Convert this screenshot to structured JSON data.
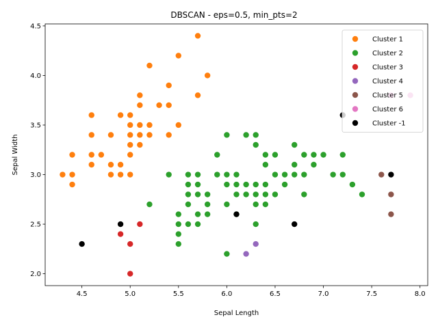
{
  "chart_data": {
    "type": "scatter",
    "title": "DBSCAN - eps=0.5, min_pts=2",
    "xlabel": "Sepal Length",
    "ylabel": "Sepal Width",
    "xlim": [
      4.12,
      8.08
    ],
    "ylim": [
      1.88,
      4.52
    ],
    "xticks": [
      "4.5",
      "5.0",
      "5.5",
      "6.0",
      "6.5",
      "7.0",
      "7.5",
      "8.0"
    ],
    "yticks": [
      "2.0",
      "2.5",
      "3.0",
      "3.5",
      "4.0",
      "4.5"
    ],
    "grid": false,
    "legend_position": "top-right",
    "series": [
      {
        "name": "Cluster 1",
        "color": "#ff7f0e",
        "points": [
          [
            5.7,
            4.4
          ],
          [
            5.5,
            4.2
          ],
          [
            5.2,
            4.1
          ],
          [
            5.8,
            4.0
          ],
          [
            5.4,
            3.9
          ],
          [
            5.1,
            3.8
          ],
          [
            5.7,
            3.8
          ],
          [
            5.1,
            3.7
          ],
          [
            5.3,
            3.7
          ],
          [
            5.4,
            3.7
          ],
          [
            4.6,
            3.6
          ],
          [
            4.9,
            3.6
          ],
          [
            5.0,
            3.6
          ],
          [
            5.0,
            3.5
          ],
          [
            5.1,
            3.5
          ],
          [
            5.2,
            3.5
          ],
          [
            5.5,
            3.5
          ],
          [
            4.6,
            3.4
          ],
          [
            4.8,
            3.4
          ],
          [
            5.0,
            3.4
          ],
          [
            5.1,
            3.4
          ],
          [
            5.2,
            3.4
          ],
          [
            5.4,
            3.4
          ],
          [
            5.0,
            3.3
          ],
          [
            5.1,
            3.3
          ],
          [
            4.4,
            3.2
          ],
          [
            4.6,
            3.2
          ],
          [
            4.7,
            3.2
          ],
          [
            5.0,
            3.2
          ],
          [
            4.6,
            3.1
          ],
          [
            4.8,
            3.1
          ],
          [
            4.9,
            3.1
          ],
          [
            4.3,
            3.0
          ],
          [
            4.4,
            3.0
          ],
          [
            4.8,
            3.0
          ],
          [
            4.9,
            3.0
          ],
          [
            5.0,
            3.0
          ],
          [
            4.4,
            2.9
          ]
        ]
      },
      {
        "name": "Cluster 2",
        "color": "#2ca02c",
        "points": [
          [
            6.0,
            3.4
          ],
          [
            6.2,
            3.4
          ],
          [
            6.3,
            3.4
          ],
          [
            6.3,
            3.3
          ],
          [
            6.7,
            3.3
          ],
          [
            5.9,
            3.2
          ],
          [
            6.4,
            3.2
          ],
          [
            6.5,
            3.2
          ],
          [
            6.8,
            3.2
          ],
          [
            6.9,
            3.2
          ],
          [
            7.0,
            3.2
          ],
          [
            7.2,
            3.2
          ],
          [
            6.4,
            3.1
          ],
          [
            6.7,
            3.1
          ],
          [
            6.9,
            3.1
          ],
          [
            5.4,
            3.0
          ],
          [
            5.6,
            3.0
          ],
          [
            5.7,
            3.0
          ],
          [
            5.9,
            3.0
          ],
          [
            6.0,
            3.0
          ],
          [
            6.1,
            3.0
          ],
          [
            6.5,
            3.0
          ],
          [
            6.6,
            3.0
          ],
          [
            6.7,
            3.0
          ],
          [
            6.8,
            3.0
          ],
          [
            7.1,
            3.0
          ],
          [
            7.2,
            3.0
          ],
          [
            5.6,
            2.9
          ],
          [
            5.7,
            2.9
          ],
          [
            6.0,
            2.9
          ],
          [
            6.1,
            2.9
          ],
          [
            6.2,
            2.9
          ],
          [
            6.3,
            2.9
          ],
          [
            6.4,
            2.9
          ],
          [
            6.6,
            2.9
          ],
          [
            7.3,
            2.9
          ],
          [
            5.6,
            2.8
          ],
          [
            5.7,
            2.8
          ],
          [
            5.8,
            2.8
          ],
          [
            6.1,
            2.8
          ],
          [
            6.2,
            2.8
          ],
          [
            6.3,
            2.8
          ],
          [
            6.4,
            2.8
          ],
          [
            6.5,
            2.8
          ],
          [
            6.8,
            2.8
          ],
          [
            7.4,
            2.8
          ],
          [
            5.2,
            2.7
          ],
          [
            5.6,
            2.7
          ],
          [
            5.8,
            2.7
          ],
          [
            6.0,
            2.7
          ],
          [
            6.3,
            2.7
          ],
          [
            6.4,
            2.7
          ],
          [
            5.5,
            2.6
          ],
          [
            5.7,
            2.6
          ],
          [
            5.8,
            2.6
          ],
          [
            6.1,
            2.6
          ],
          [
            5.5,
            2.5
          ],
          [
            5.6,
            2.5
          ],
          [
            5.7,
            2.5
          ],
          [
            6.3,
            2.5
          ],
          [
            5.5,
            2.4
          ],
          [
            5.5,
            2.3
          ],
          [
            6.0,
            2.2
          ]
        ]
      },
      {
        "name": "Cluster 3",
        "color": "#d62728",
        "points": [
          [
            5.1,
            2.5
          ],
          [
            4.9,
            2.4
          ],
          [
            5.0,
            2.3
          ],
          [
            5.0,
            2.0
          ]
        ]
      },
      {
        "name": "Cluster 4",
        "color": "#9467bd",
        "points": [
          [
            6.3,
            2.3
          ],
          [
            6.2,
            2.2
          ]
        ]
      },
      {
        "name": "Cluster 5",
        "color": "#8c564b",
        "points": [
          [
            7.6,
            3.0
          ],
          [
            7.7,
            2.8
          ],
          [
            7.7,
            2.6
          ]
        ]
      },
      {
        "name": "Cluster 6",
        "color": "#e377c2",
        "points": [
          [
            7.7,
            3.8
          ],
          [
            7.9,
            3.8
          ]
        ]
      },
      {
        "name": "Cluster -1",
        "color": "#000000",
        "points": [
          [
            7.2,
            3.6
          ],
          [
            7.7,
            3.0
          ],
          [
            6.1,
            2.6
          ],
          [
            4.9,
            2.5
          ],
          [
            6.7,
            2.5
          ],
          [
            4.5,
            2.3
          ]
        ]
      }
    ]
  }
}
